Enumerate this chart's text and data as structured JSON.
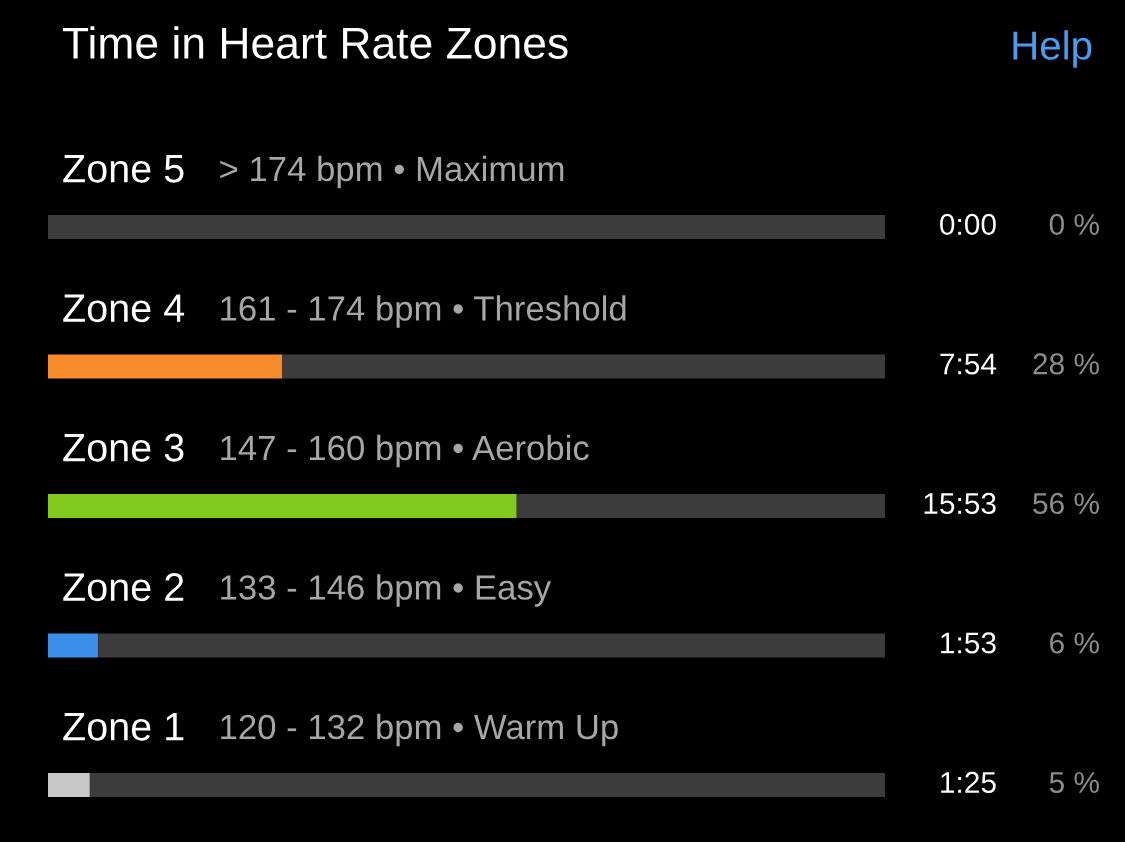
{
  "chart_data": {
    "type": "bar",
    "orientation": "horizontal",
    "stacked": true,
    "title": "Time in Heart Rate Zones",
    "categories": [
      "Zone 5",
      "Zone 4",
      "Zone 3",
      "Zone 2",
      "Zone 1"
    ],
    "series": [
      {
        "values": [
          0,
          28,
          56,
          6,
          5
        ],
        "colors": [
          "#3c3c3c",
          "#f78b2a",
          "#82c91e",
          "#3b8fe8",
          "#c8c8c8"
        ],
        "value_labels": [
          "0 %",
          "28 %",
          "56 %",
          "6 %",
          "5 %"
        ]
      },
      {
        "values": [
          100,
          72,
          44,
          94,
          95
        ],
        "color": "#3c3c3c"
      }
    ],
    "xlim": [
      0,
      100
    ],
    "annotations": [
      "Help",
      "> 174 bpm • Maximum",
      "161 - 174 bpm • Threshold",
      "147 - 160 bpm • Aerobic",
      "133 - 146 bpm • Easy",
      "120 - 132 bpm • Warm Up",
      "0:00",
      "7:54",
      "15:53",
      "1:53",
      "1:25"
    ]
  }
}
